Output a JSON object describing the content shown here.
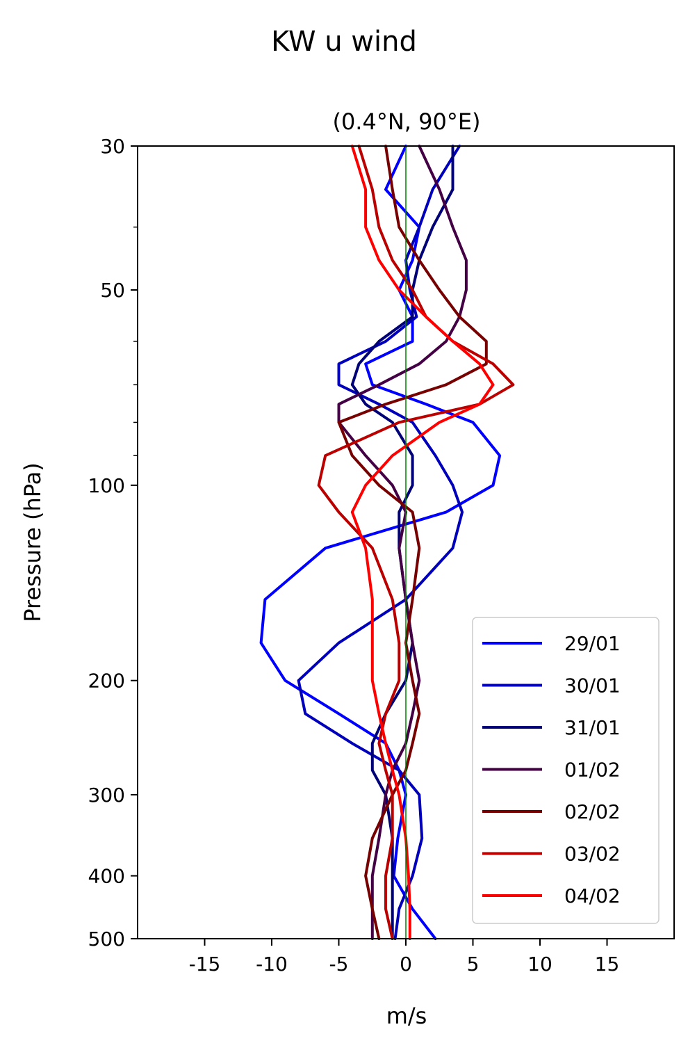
{
  "chart_data": {
    "type": "line",
    "title": "KW u wind",
    "subtitle": "(0.4°N, 90°E)",
    "xlabel": "m/s",
    "ylabel": "Pressure (hPa)",
    "xlim": [
      -20,
      20
    ],
    "ylim": [
      500,
      30
    ],
    "y_scale": "log",
    "x_ticks": [
      -15,
      -10,
      -5,
      0,
      5,
      10,
      15
    ],
    "x_tick_labels": [
      "-15",
      "-10",
      "-5",
      "0",
      "5",
      "10",
      "15"
    ],
    "y_ticks": [
      30,
      50,
      100,
      200,
      300,
      400,
      500
    ],
    "y_tick_labels": [
      "30",
      "50",
      "100",
      "200",
      "300",
      "400",
      "500"
    ],
    "y_minor_ticks": [
      40,
      60,
      70,
      80,
      90
    ],
    "grid": false,
    "legend_position": "bottom-right",
    "reference_line": {
      "x": 0,
      "color": "#008000"
    },
    "pressure_levels": [
      30,
      35,
      40,
      45,
      50,
      55,
      60,
      65,
      70,
      75,
      80,
      90,
      100,
      110,
      125,
      150,
      175,
      200,
      225,
      250,
      275,
      300,
      350,
      400,
      450,
      500
    ],
    "series": [
      {
        "name": "29/01",
        "color": "#0000ff",
        "values": [
          0,
          -1.5,
          1,
          0.5,
          -0.5,
          0.5,
          0.5,
          -3,
          -2.5,
          1.5,
          5,
          7,
          6.5,
          3,
          -6,
          -10.5,
          -10.8,
          -9,
          -5,
          -1.5,
          -0.5,
          0,
          -0.6,
          -0.9,
          0.5,
          2.2
        ]
      },
      {
        "name": "30/01",
        "color": "#0000bb",
        "values": [
          4,
          2,
          1,
          0,
          0.3,
          0.8,
          -1.5,
          -5,
          -5,
          -2,
          0.5,
          2.2,
          3.5,
          4.2,
          3.5,
          0,
          -5,
          -8,
          -7.5,
          -4,
          -0.5,
          1,
          1.2,
          0.5,
          -0.5,
          -0.8
        ]
      },
      {
        "name": "31/01",
        "color": "#000077",
        "values": [
          3.5,
          3.5,
          2,
          1,
          0.5,
          0.5,
          -2,
          -3.5,
          -4,
          -3,
          -1,
          0.5,
          0.5,
          -0.5,
          -0.5,
          0,
          0.5,
          0,
          -1.5,
          -2.5,
          -2.5,
          -1.5,
          -1,
          -1,
          -1,
          -1
        ]
      },
      {
        "name": "01/02",
        "color": "#440044",
        "values": [
          1,
          2.5,
          3.5,
          4.5,
          4.5,
          4,
          3,
          1,
          -2,
          -5,
          -5,
          -3,
          -1,
          0,
          -0.5,
          0,
          0.5,
          1,
          0.5,
          0,
          -1,
          -1.5,
          -2,
          -2.5,
          -2.5,
          -2.5
        ]
      },
      {
        "name": "02/02",
        "color": "#770000",
        "values": [
          -1.5,
          -1,
          -0.5,
          1,
          2.5,
          4,
          6,
          6,
          3,
          -1.5,
          -5,
          -4,
          -2,
          0.5,
          1,
          0.5,
          0,
          0.5,
          1,
          0.5,
          0,
          -1,
          -2.5,
          -3,
          -2.5,
          -2
        ]
      },
      {
        "name": "03/02",
        "color": "#bb0000",
        "values": [
          -3.5,
          -2.5,
          -2,
          -1,
          0.5,
          1.5,
          3.5,
          6.5,
          8,
          5.5,
          -0.5,
          -6,
          -6.5,
          -5,
          -2.5,
          -1,
          -0.5,
          -0.5,
          -1.5,
          -2,
          -1.5,
          -1,
          -1,
          -1.5,
          -1.5,
          -1
        ]
      },
      {
        "name": "04/02",
        "color": "#ff0000",
        "values": [
          -4,
          -3,
          -3,
          -2,
          -0.5,
          1.5,
          3.5,
          5.5,
          6.5,
          5.5,
          2.5,
          -1,
          -3,
          -4,
          -3,
          -2.5,
          -2.5,
          -2.5,
          -2,
          -1.5,
          -1,
          -0.5,
          0,
          0.2,
          0.3,
          0.3
        ]
      }
    ]
  }
}
